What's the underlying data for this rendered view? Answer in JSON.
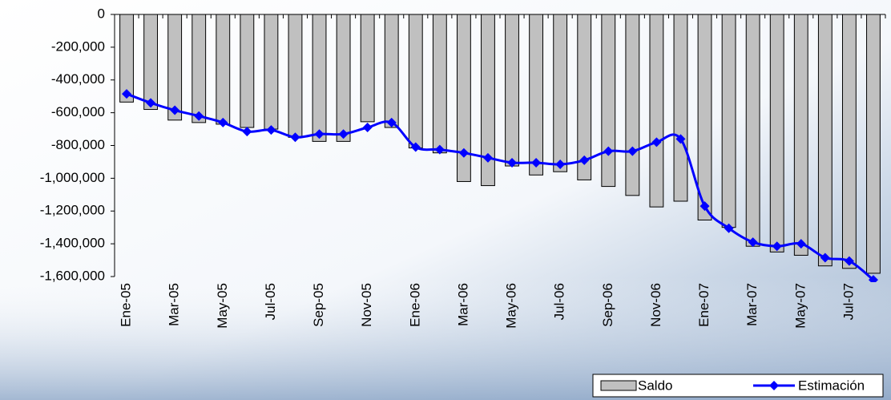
{
  "chart_data": {
    "type": "bar-line",
    "categories": [
      "Ene-05",
      null,
      "Mar-05",
      null,
      "May-05",
      null,
      "Jul-05",
      null,
      "Sep-05",
      null,
      "Nov-05",
      null,
      "Ene-06",
      null,
      "Mar-06",
      null,
      "May-06",
      null,
      "Jul-06",
      null,
      "Sep-06",
      null,
      "Nov-06",
      null,
      "Ene-07",
      null,
      "Mar-07",
      null,
      "May-07",
      null,
      "Jul-07",
      null
    ],
    "series": [
      {
        "name": "Saldo",
        "type": "bar",
        "color": "#c0c0c0",
        "values": [
          -535000,
          -580000,
          -645000,
          -660000,
          -670000,
          -690000,
          -700000,
          -750000,
          -775000,
          -775000,
          -655000,
          -690000,
          -815000,
          -845000,
          -1020000,
          -1045000,
          -925000,
          -980000,
          -960000,
          -1010000,
          -1050000,
          -1105000,
          -1175000,
          -1140000,
          -1255000,
          -1300000,
          -1415000,
          -1450000,
          -1470000,
          -1535000,
          -1550000,
          -1580000
        ]
      },
      {
        "name": "Estimación",
        "type": "line",
        "color": "#0000ff",
        "values": [
          -485000,
          -540000,
          -585000,
          -620000,
          -660000,
          -715000,
          -705000,
          -750000,
          -730000,
          -730000,
          -690000,
          -660000,
          -810000,
          -825000,
          -845000,
          -875000,
          -905000,
          -905000,
          -915000,
          -890000,
          -835000,
          -835000,
          -780000,
          -760000,
          -1170000,
          -1305000,
          -1390000,
          -1415000,
          -1400000,
          -1485000,
          -1505000,
          -1620000
        ]
      }
    ],
    "ylim": [
      -1600000,
      0
    ],
    "yticks": [
      {
        "value": -1600000,
        "label": "-1,600,000"
      },
      {
        "value": -1400000,
        "label": "-1,400,000"
      },
      {
        "value": -1200000,
        "label": "-1,200,000"
      },
      {
        "value": -1000000,
        "label": "-1,000,000"
      },
      {
        "value": -800000,
        "label": "-800,000"
      },
      {
        "value": -600000,
        "label": "-600,000"
      },
      {
        "value": -400000,
        "label": "-400,000"
      },
      {
        "value": -200000,
        "label": "-200,000"
      },
      0
    ],
    "legend": "bottom-right"
  }
}
